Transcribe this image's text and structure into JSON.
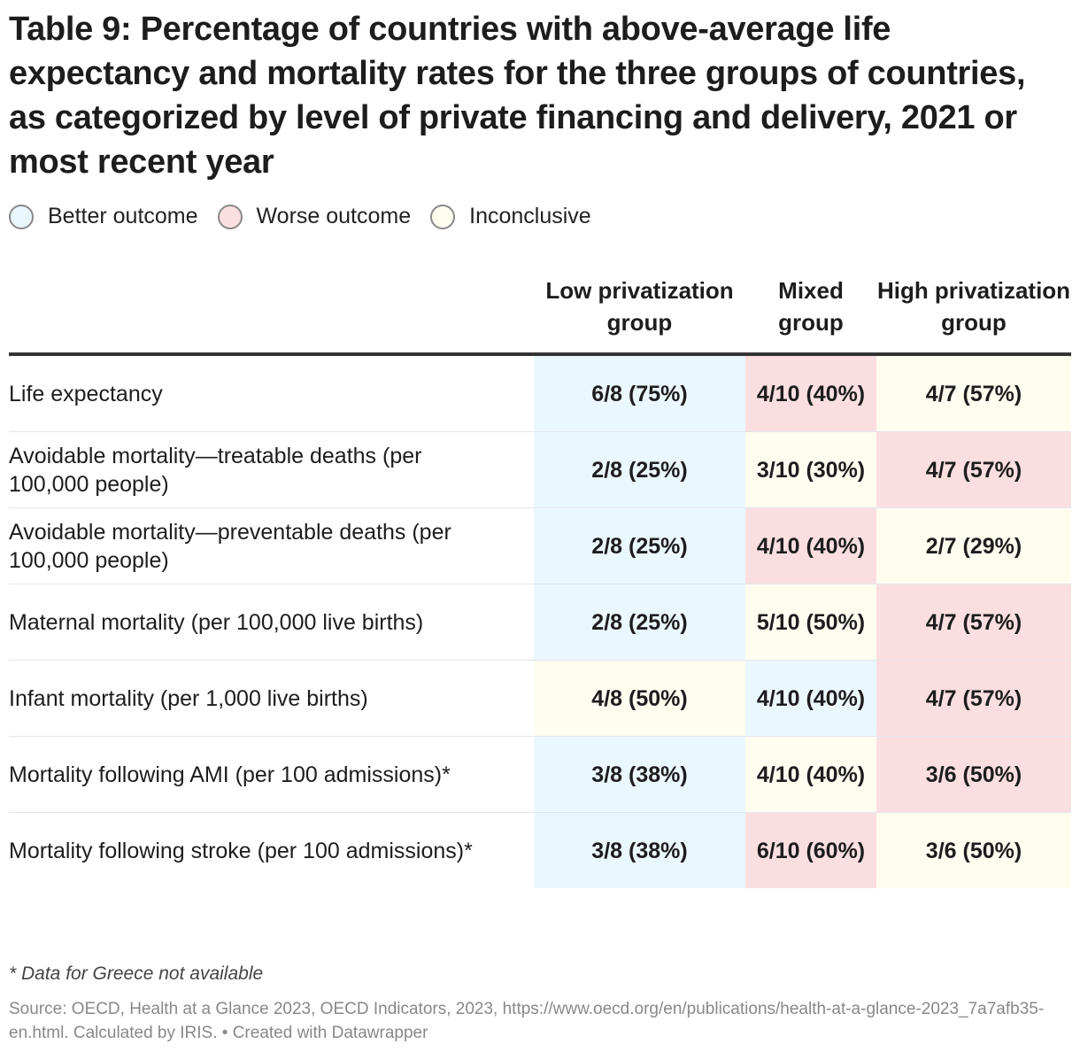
{
  "title": "Table 9: Percentage of countries with above-average life expectancy and mortality rates for the three groups of countries, as categorized by level of private financing and delivery, 2021 or most recent year",
  "legend": [
    {
      "label": "Better outcome",
      "color": "#ebf7fe"
    },
    {
      "label": "Worse outcome",
      "color": "#fbdfe0"
    },
    {
      "label": "Inconclusive",
      "color": "#fffcf0"
    }
  ],
  "chart_data": {
    "type": "table",
    "columns": [
      "",
      "Low privatization group",
      "Mixed group",
      "High privatization group"
    ],
    "rows": [
      {
        "label": "Life expectancy",
        "cells": [
          {
            "v": "6/8 (75%)",
            "o": "better"
          },
          {
            "v": "4/10 (40%)",
            "o": "worse"
          },
          {
            "v": "4/7 (57%)",
            "o": "inconclusive"
          }
        ]
      },
      {
        "label": "Avoidable mortality—treatable deaths (per 100,000 people)",
        "cells": [
          {
            "v": "2/8 (25%)",
            "o": "better"
          },
          {
            "v": "3/10 (30%)",
            "o": "inconclusive"
          },
          {
            "v": "4/7 (57%)",
            "o": "worse"
          }
        ]
      },
      {
        "label": "Avoidable mortality—preventable deaths (per 100,000 people)",
        "cells": [
          {
            "v": "2/8 (25%)",
            "o": "better"
          },
          {
            "v": "4/10 (40%)",
            "o": "worse"
          },
          {
            "v": "2/7 (29%)",
            "o": "inconclusive"
          }
        ]
      },
      {
        "label": "Maternal mortality (per 100,000 live births)",
        "cells": [
          {
            "v": "2/8 (25%)",
            "o": "better"
          },
          {
            "v": "5/10 (50%)",
            "o": "inconclusive"
          },
          {
            "v": "4/7 (57%)",
            "o": "worse"
          }
        ]
      },
      {
        "label": "Infant mortality (per 1,000 live births)",
        "cells": [
          {
            "v": "4/8 (50%)",
            "o": "inconclusive"
          },
          {
            "v": "4/10 (40%)",
            "o": "better"
          },
          {
            "v": "4/7 (57%)",
            "o": "worse"
          }
        ]
      },
      {
        "label": "Mortality following AMI (per 100 admissions)*",
        "cells": [
          {
            "v": "3/8 (38%)",
            "o": "better"
          },
          {
            "v": "4/10 (40%)",
            "o": "inconclusive"
          },
          {
            "v": "3/6 (50%)",
            "o": "worse"
          }
        ]
      },
      {
        "label": "Mortality following stroke (per 100 admissions)*",
        "cells": [
          {
            "v": "3/8 (38%)",
            "o": "better"
          },
          {
            "v": "6/10 (60%)",
            "o": "worse"
          },
          {
            "v": "3/6 (50%)",
            "o": "inconclusive"
          }
        ]
      }
    ]
  },
  "colors": {
    "better": "#ebf7fe",
    "worse": "#fbdfe0",
    "inconclusive": "#fffcf0"
  },
  "note": "* Data for Greece not available",
  "source": "Source: OECD, Health at a Glance 2023, OECD Indicators, 2023, https://www.oecd.org/en/publications/health-at-a-glance-2023_7a7afb35-en.html. Calculated by IRIS. • Created with Datawrapper"
}
